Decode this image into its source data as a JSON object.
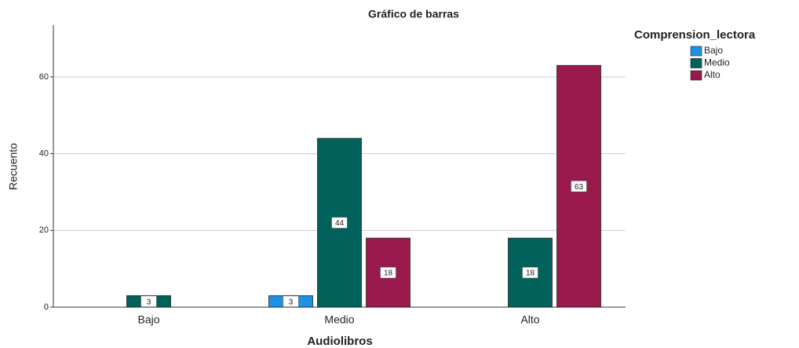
{
  "chart_data": {
    "type": "bar",
    "title": "Gráfico de barras",
    "x_label": "Audiolibros",
    "y_label": "Recuento",
    "categories": [
      "Bajo",
      "Medio",
      "Alto"
    ],
    "legend_title": "Comprension_lectora",
    "series": [
      {
        "name": "Bajo",
        "color": "#1e90e6",
        "values": [
          null,
          3,
          null
        ]
      },
      {
        "name": "Medio",
        "color": "#00625b",
        "values": [
          3,
          44,
          18
        ]
      },
      {
        "name": "Alto",
        "color": "#9b1a4e",
        "values": [
          null,
          18,
          63
        ]
      }
    ],
    "ylim": [
      0,
      73.5
    ],
    "yticks": [
      0,
      20,
      40,
      60
    ],
    "grid": true,
    "legend": "right"
  }
}
